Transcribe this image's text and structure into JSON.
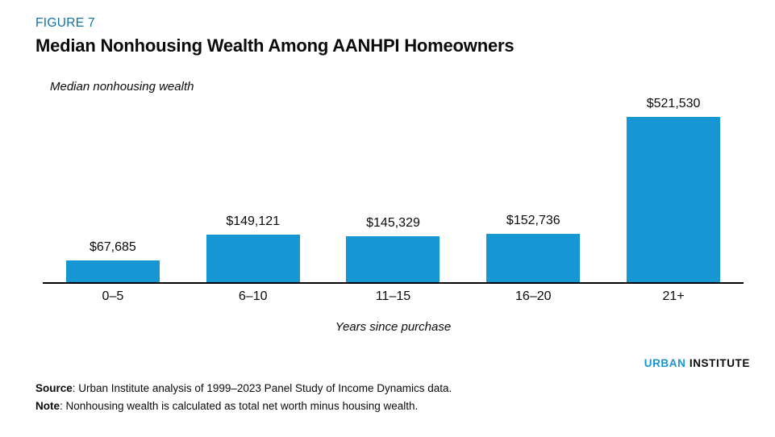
{
  "figure_label": "FIGURE 7",
  "title": "Median Nonhousing Wealth Among AANHPI Homeowners",
  "chart_data": {
    "type": "bar",
    "categories": [
      "0–5",
      "6–10",
      "11–15",
      "16–20",
      "21+"
    ],
    "values": [
      67685,
      149121,
      145329,
      152736,
      521530
    ],
    "value_labels": [
      "$67,685",
      "$149,121",
      "$145,329",
      "$152,736",
      "$521,530"
    ],
    "title": "Median Nonhousing Wealth Among AANHPI Homeowners",
    "xlabel": "Years since purchase",
    "ylabel": "Median nonhousing wealth",
    "bar_color": "#1696d2",
    "grid": false,
    "legend": "none",
    "baseline_color": "#000000"
  },
  "logo": {
    "part1": "URBAN",
    "part2": "INSTITUTE"
  },
  "footer": {
    "source_label": "Source",
    "source_text": ": Urban Institute analysis of 1999–2023 Panel Study of Income Dynamics data.",
    "note_label": "Note",
    "note_text": ": Nonhousing wealth is calculated as total net worth minus housing wealth."
  },
  "colors": {
    "figure_label": "#12719e",
    "bar": "#1696d2",
    "logo_urban": "#1696d2",
    "logo_institute": "#0a0a0a"
  }
}
